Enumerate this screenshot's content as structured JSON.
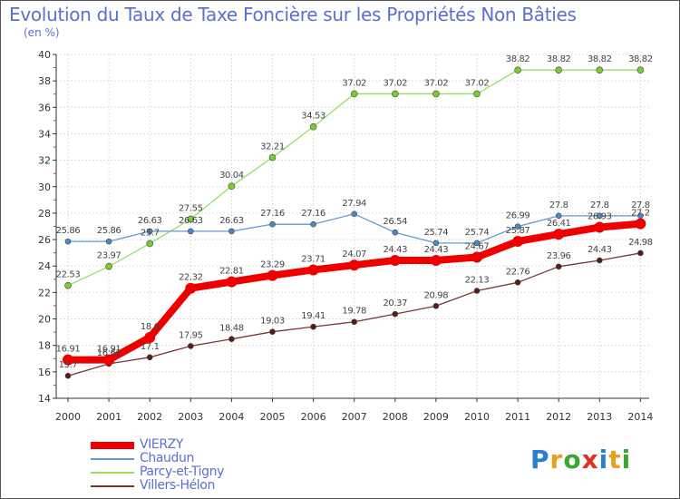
{
  "title": "Evolution du Taux de Taxe Foncière sur les Propriétés Non Bâties",
  "unit": "(en %)",
  "brand": {
    "text": "Proxiti",
    "letters": [
      {
        "ch": "P",
        "color": "#2a7fd4"
      },
      {
        "ch": "r",
        "color": "#e8a020"
      },
      {
        "ch": "o",
        "color": "#3aa830"
      },
      {
        "ch": "x",
        "color": "#e03020"
      },
      {
        "ch": "i",
        "color": "#2a7fd4"
      },
      {
        "ch": "t",
        "color": "#e8a020"
      },
      {
        "ch": "i",
        "color": "#3aa830"
      }
    ]
  },
  "chart_data": {
    "type": "line",
    "title": "Evolution du Taux de Taxe Foncière sur les Propriétés Non Bâties",
    "ylabel": "(en %)",
    "xlabel": "",
    "ylim": [
      14,
      40
    ],
    "yticks": [
      14,
      16,
      18,
      20,
      22,
      24,
      26,
      28,
      30,
      32,
      34,
      36,
      38,
      40
    ],
    "categories": [
      "2000",
      "2001",
      "2002",
      "2003",
      "2004",
      "2005",
      "2006",
      "2007",
      "2008",
      "2009",
      "2010",
      "2011",
      "2012",
      "2013",
      "2014"
    ],
    "grid": true,
    "legend_position": "bottom-left",
    "series": [
      {
        "name": "Parcy-et-Tigny",
        "color": "#99dd66",
        "marker": "#77cc33",
        "width": 1.3,
        "radius": 3.5,
        "values": [
          22.53,
          23.97,
          25.7,
          27.55,
          30.04,
          32.21,
          34.53,
          37.02,
          37.02,
          37.02,
          37.02,
          38.82,
          38.82,
          38.82,
          38.82
        ],
        "labels": [
          "22.53",
          "23.97",
          "25.7",
          "27.55",
          "30.04",
          "32.21",
          "34.53",
          "37.02",
          "37.02",
          "37.02",
          "37.02",
          "38.82",
          "38.82",
          "38.82",
          "38.82"
        ]
      },
      {
        "name": "Chaudun",
        "color": "#6699cc",
        "marker": "#4a88cc",
        "width": 1.3,
        "radius": 3,
        "values": [
          25.86,
          25.86,
          26.63,
          26.63,
          26.63,
          27.16,
          27.16,
          27.94,
          26.54,
          25.74,
          25.74,
          26.99,
          27.8,
          27.8,
          27.8
        ],
        "labels": [
          "25.86",
          "25.86",
          "26.63",
          "26.63",
          "26.63",
          "27.16",
          "27.16",
          "27.94",
          "26.54",
          "25.74",
          "25.74",
          "26.99",
          "27.8",
          "27.8",
          "27.8"
        ]
      },
      {
        "name": "Villers-Hélon",
        "color": "#7a3535",
        "marker": "#5a1a1a",
        "width": 1.3,
        "radius": 3,
        "values": [
          15.7,
          16.61,
          17.1,
          17.95,
          18.48,
          19.03,
          19.41,
          19.78,
          20.37,
          20.98,
          22.13,
          22.76,
          23.96,
          24.43,
          24.98
        ],
        "labels": [
          "15.7",
          "16.61",
          "17.1",
          "17.95",
          "18.48",
          "19.03",
          "19.41",
          "19.78",
          "20.37",
          "20.98",
          "22.13",
          "22.76",
          "23.96",
          "24.43",
          "24.98"
        ]
      },
      {
        "name": "VIERZY",
        "color": "#ee0000",
        "marker": "#ee0000",
        "width": 8,
        "radius": 6,
        "values": [
          16.91,
          16.91,
          18.6,
          22.32,
          22.81,
          23.29,
          23.71,
          24.07,
          24.43,
          24.43,
          24.67,
          25.87,
          26.41,
          26.93,
          27.2
        ],
        "labels": [
          "16.91",
          "16.91",
          "18.6",
          "22.32",
          "22.81",
          "23.29",
          "23.71",
          "24.07",
          "24.43",
          "24.43",
          "24.67",
          "25.87",
          "26.41",
          "26.93",
          "27.2"
        ]
      }
    ],
    "legend_order": [
      "VIERZY",
      "Chaudun",
      "Parcy-et-Tigny",
      "Villers-Hélon"
    ]
  }
}
